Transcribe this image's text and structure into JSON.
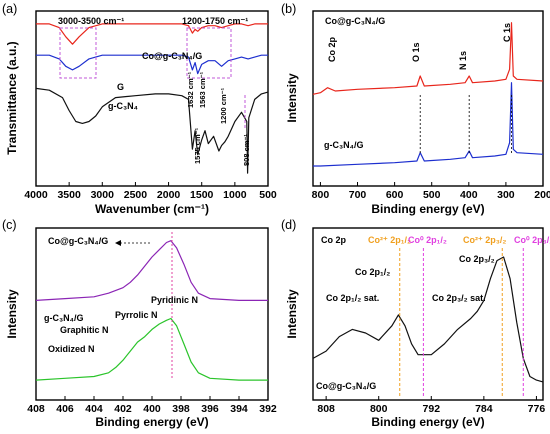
{
  "chart_data": [
    {
      "panel": "(a)",
      "type": "line",
      "xlabel": "Wavenumber (cm⁻¹)",
      "ylabel": "Transmittance (a.u.)",
      "xlim": [
        4000,
        500
      ],
      "x_ticks": [
        "4000",
        "3500",
        "3000",
        "2500",
        "2000",
        "1500",
        "1000",
        "500"
      ],
      "region_labels": [
        "3000-3500 cm⁻¹",
        "1200-1750 cm⁻¹"
      ],
      "peak_labels": [
        "1632 cm⁻¹",
        "1563 cm⁻¹",
        "1200 cm⁻¹",
        "1575 cm⁻¹",
        "808 cm⁻¹"
      ],
      "peak_positions": [
        1632,
        1563,
        1200,
        1575,
        808
      ],
      "series": [
        {
          "name": "Co@g-C₃N₄/G",
          "color": "#e8261c",
          "x": [
            4000,
            3800,
            3650,
            3550,
            3450,
            3350,
            3200,
            3000,
            2800,
            2500,
            2200,
            2000,
            1800,
            1700,
            1640,
            1600,
            1560,
            1500,
            1400,
            1300,
            1200,
            1100,
            1000,
            900,
            800,
            700,
            600,
            500
          ],
          "y": [
            0.93,
            0.93,
            0.91,
            0.86,
            0.82,
            0.86,
            0.91,
            0.93,
            0.93,
            0.93,
            0.93,
            0.93,
            0.93,
            0.92,
            0.88,
            0.9,
            0.89,
            0.91,
            0.92,
            0.92,
            0.91,
            0.92,
            0.93,
            0.93,
            0.92,
            0.93,
            0.93,
            0.93
          ]
        },
        {
          "name": "G",
          "color": "#1d2fcf",
          "x": [
            4000,
            3800,
            3650,
            3550,
            3450,
            3350,
            3200,
            3000,
            2800,
            2500,
            2200,
            2000,
            1800,
            1700,
            1640,
            1600,
            1560,
            1500,
            1400,
            1300,
            1200,
            1100,
            1000,
            900,
            800,
            700,
            600,
            500
          ],
          "y": [
            0.76,
            0.76,
            0.74,
            0.7,
            0.68,
            0.7,
            0.74,
            0.76,
            0.76,
            0.76,
            0.76,
            0.76,
            0.76,
            0.75,
            0.68,
            0.72,
            0.66,
            0.71,
            0.73,
            0.73,
            0.7,
            0.73,
            0.74,
            0.75,
            0.74,
            0.75,
            0.76,
            0.76
          ]
        },
        {
          "name": "g-C₃N₄",
          "color": "#111111",
          "x": [
            4000,
            3800,
            3600,
            3500,
            3400,
            3300,
            3200,
            3100,
            3000,
            2800,
            2500,
            2200,
            2000,
            1800,
            1700,
            1640,
            1600,
            1560,
            1500,
            1450,
            1400,
            1320,
            1240,
            1200,
            1150,
            1100,
            1000,
            900,
            820,
            808,
            790,
            700,
            600,
            500
          ],
          "y": [
            0.58,
            0.57,
            0.53,
            0.46,
            0.4,
            0.39,
            0.4,
            0.43,
            0.48,
            0.53,
            0.54,
            0.55,
            0.55,
            0.54,
            0.52,
            0.25,
            0.35,
            0.22,
            0.3,
            0.35,
            0.28,
            0.32,
            0.24,
            0.27,
            0.29,
            0.32,
            0.4,
            0.45,
            0.4,
            0.12,
            0.42,
            0.52,
            0.55,
            0.56
          ]
        }
      ]
    },
    {
      "panel": "(b)",
      "type": "line",
      "xlabel": "Binding energy (eV)",
      "ylabel": "Intensity",
      "xlim": [
        820,
        200
      ],
      "x_ticks": [
        "800",
        "700",
        "600",
        "500",
        "400",
        "300",
        "200"
      ],
      "peak_labels": [
        "Co 2p",
        "O 1s",
        "N 1s",
        "C 1s"
      ],
      "peak_positions": [
        781,
        531,
        399,
        285
      ],
      "series": [
        {
          "name": "Co@g-C₃N₄/G",
          "color": "#e8261c",
          "x": [
            820,
            800,
            781,
            760,
            700,
            600,
            540,
            531,
            520,
            450,
            410,
            399,
            390,
            330,
            300,
            290,
            285,
            280,
            270,
            200
          ],
          "y": [
            0.55,
            0.56,
            0.59,
            0.57,
            0.58,
            0.59,
            0.6,
            0.66,
            0.6,
            0.61,
            0.62,
            0.66,
            0.62,
            0.63,
            0.64,
            0.7,
            0.98,
            0.66,
            0.64,
            0.63
          ]
        },
        {
          "name": "g-C₃N₄/G",
          "color": "#1d2fcf",
          "x": [
            820,
            800,
            700,
            600,
            540,
            531,
            520,
            450,
            410,
            399,
            390,
            330,
            300,
            290,
            285,
            280,
            270,
            200
          ],
          "y": [
            0.12,
            0.12,
            0.13,
            0.14,
            0.15,
            0.2,
            0.15,
            0.16,
            0.17,
            0.21,
            0.17,
            0.18,
            0.19,
            0.26,
            0.62,
            0.22,
            0.2,
            0.19
          ]
        }
      ]
    },
    {
      "panel": "(c)",
      "type": "line",
      "xlabel": "Binding energy (eV)",
      "ylabel": "Intensity",
      "xlim": [
        408,
        392
      ],
      "x_ticks": [
        "408",
        "406",
        "404",
        "402",
        "400",
        "398",
        "396",
        "394",
        "392"
      ],
      "labels": [
        "Co@g-C₃N₄/G",
        "g-C₃N₄/G",
        "Pyridinic N",
        "Pyrrolic N",
        "Graphitic N",
        "Oxidized N"
      ],
      "peak_positions": [
        398.7,
        400.0,
        401.2,
        402.3
      ],
      "series": [
        {
          "name": "Co@g-C₃N₄/G",
          "color": "#8b25b5",
          "x": [
            408,
            406,
            404,
            403,
            402,
            401.5,
            401,
            400.5,
            400,
            399.5,
            399,
            398.7,
            398.3,
            397.8,
            397.3,
            396.8,
            396,
            394,
            392
          ],
          "y": [
            0.6,
            0.61,
            0.62,
            0.64,
            0.67,
            0.7,
            0.74,
            0.79,
            0.84,
            0.88,
            0.92,
            0.93,
            0.89,
            0.8,
            0.7,
            0.64,
            0.61,
            0.6,
            0.6
          ]
        },
        {
          "name": "g-C₃N₄/G",
          "color": "#2bc42b",
          "x": [
            408,
            406,
            404,
            403,
            402.5,
            402,
            401.5,
            401,
            400.5,
            400,
            399.5,
            399,
            398.7,
            398.3,
            397.8,
            397.3,
            396.8,
            396,
            394,
            392
          ],
          "y": [
            0.16,
            0.17,
            0.18,
            0.2,
            0.23,
            0.27,
            0.32,
            0.37,
            0.4,
            0.44,
            0.47,
            0.49,
            0.5,
            0.46,
            0.36,
            0.26,
            0.2,
            0.17,
            0.16,
            0.16
          ]
        }
      ]
    },
    {
      "panel": "(d)",
      "type": "line",
      "xlabel": "Binding energy (eV)",
      "ylabel": "Intensity",
      "xlim": [
        810,
        775
      ],
      "x_ticks": [
        "808",
        "800",
        "792",
        "784",
        "776"
      ],
      "labels": [
        "Co 2p",
        "Co²⁺ 2p₁/₂",
        "Co⁰ 2p₁/₂",
        "Co²⁺ 2p₃/₂",
        "Co⁰ 2p₃/₂",
        "Co 2p₁/₂",
        "Co 2p₃/₂",
        "Co 2p₁/₂ sat.",
        "Co 2p₃/₂ sat.",
        "Co@g-C₃N₄/G"
      ],
      "reference_lines": [
        {
          "label": "Co²⁺ 2p₁/₂",
          "x": 796.8,
          "color": "#f0a020"
        },
        {
          "label": "Co⁰ 2p₁/₂",
          "x": 793.2,
          "color": "#e040e0"
        },
        {
          "label": "Co²⁺ 2p₃/₂",
          "x": 781.2,
          "color": "#f0a020"
        },
        {
          "label": "Co⁰ 2p₃/₂",
          "x": 778.0,
          "color": "#e040e0"
        }
      ],
      "series": [
        {
          "name": "Co@g-C₃N₄/G",
          "color": "#111111",
          "x": [
            810,
            808,
            806,
            804,
            802,
            800,
            798,
            797,
            796,
            795,
            794,
            792,
            790,
            788,
            786,
            785,
            784,
            783,
            782,
            781,
            780,
            779,
            778,
            777,
            776,
            775
          ],
          "y": [
            0.28,
            0.32,
            0.4,
            0.44,
            0.42,
            0.38,
            0.46,
            0.52,
            0.46,
            0.36,
            0.3,
            0.3,
            0.36,
            0.44,
            0.5,
            0.54,
            0.6,
            0.72,
            0.82,
            0.84,
            0.72,
            0.48,
            0.28,
            0.18,
            0.16,
            0.15
          ]
        }
      ]
    }
  ]
}
